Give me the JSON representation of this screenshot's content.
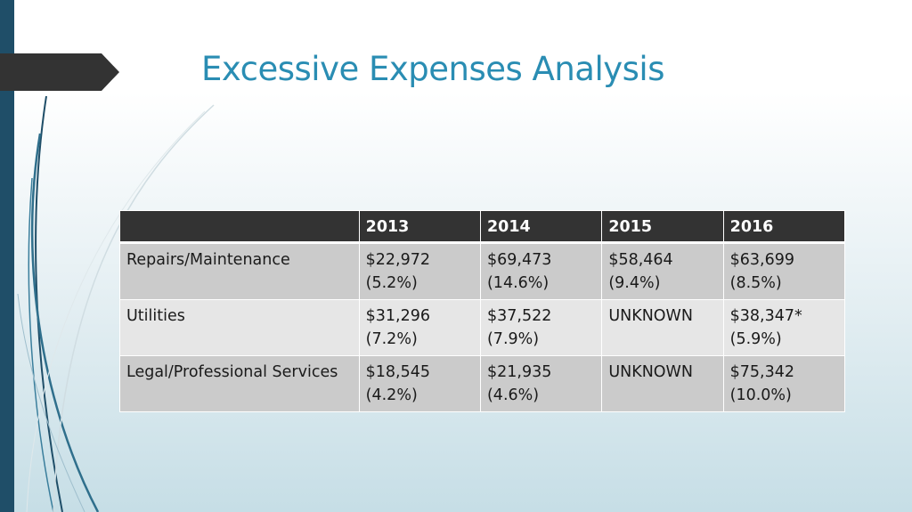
{
  "slide": {
    "title": "Excessive Expenses Analysis"
  },
  "table": {
    "headers": [
      "",
      "2013",
      "2014",
      "2015",
      "2016"
    ],
    "rows": [
      {
        "label": "Repairs/Maintenance",
        "cells": [
          {
            "amount": "$22,972",
            "percent": "(5.2%)"
          },
          {
            "amount": "$69,473",
            "percent": "(14.6%)"
          },
          {
            "amount": "$58,464",
            "percent": "(9.4%)"
          },
          {
            "amount": "$63,699",
            "percent": "(8.5%)"
          }
        ]
      },
      {
        "label": "Utilities",
        "cells": [
          {
            "amount": "$31,296",
            "percent": "(7.2%)"
          },
          {
            "amount": "$37,522",
            "percent": "(7.9%)"
          },
          {
            "amount": "UNKNOWN",
            "percent": ""
          },
          {
            "amount": "$38,347*",
            "percent": "(5.9%)"
          }
        ]
      },
      {
        "label": "Legal/Professional Services",
        "cells": [
          {
            "amount": "$18,545",
            "percent": "(4.2%)"
          },
          {
            "amount": "$21,935",
            "percent": "(4.6%)"
          },
          {
            "amount": "UNKNOWN",
            "percent": ""
          },
          {
            "amount": "$75,342",
            "percent": "(10.0%)"
          }
        ]
      }
    ]
  },
  "colors": {
    "title": "#2a8db3",
    "header_bg": "#333333",
    "row_dark": "#cbcbcb",
    "row_light": "#e6e6e6",
    "accent_bar": "#1f4e68"
  }
}
